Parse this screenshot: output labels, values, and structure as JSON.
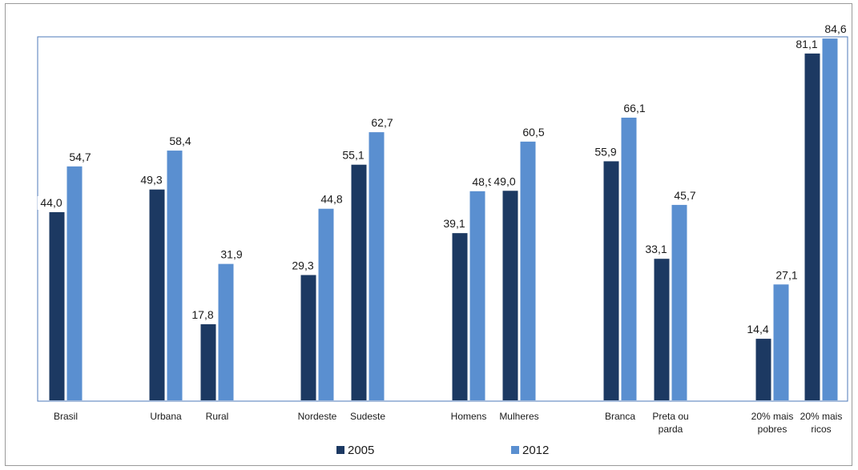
{
  "chart_data": {
    "type": "bar",
    "categories": [
      "Brasil",
      "Urbana",
      "Rural",
      "Nordeste",
      "Sudeste",
      "Homens",
      "Mulheres",
      "Branca",
      "Preta ou parda",
      "20% mais pobres",
      "20% mais ricos"
    ],
    "category_lines": [
      [
        "Brasil"
      ],
      [
        "Urbana"
      ],
      [
        "Rural"
      ],
      [
        "Nordeste"
      ],
      [
        "Sudeste"
      ],
      [
        "Homens"
      ],
      [
        "Mulheres"
      ],
      [
        "Branca"
      ],
      [
        "Preta ou",
        "parda"
      ],
      [
        "20% mais",
        "pobres"
      ],
      [
        "20% mais",
        "ricos"
      ]
    ],
    "series": [
      {
        "name": "2005",
        "values": [
          44.0,
          49.3,
          17.8,
          29.3,
          55.1,
          39.1,
          49.0,
          55.9,
          33.1,
          14.4,
          81.1
        ],
        "labels": [
          "44,0",
          "49,3",
          "17,8",
          "29,3",
          "55,1",
          "39,1",
          "49,0",
          "55,9",
          "33,1",
          "14,4",
          "81,1"
        ],
        "color": "#1c3962"
      },
      {
        "name": "2012",
        "values": [
          54.7,
          58.4,
          31.9,
          44.8,
          62.7,
          48.9,
          60.5,
          66.1,
          45.7,
          27.1,
          84.6
        ],
        "labels": [
          "54,7",
          "58,4",
          "31,9",
          "44,8",
          "62,7",
          "48,9",
          "60,5",
          "66,1",
          "45,7",
          "27,1",
          "84,6"
        ],
        "color": "#5a8fd0"
      }
    ],
    "ylim": [
      0,
      85
    ],
    "legend_position": "bottom",
    "grid": false,
    "title": "",
    "xlabel": "",
    "ylabel": ""
  }
}
